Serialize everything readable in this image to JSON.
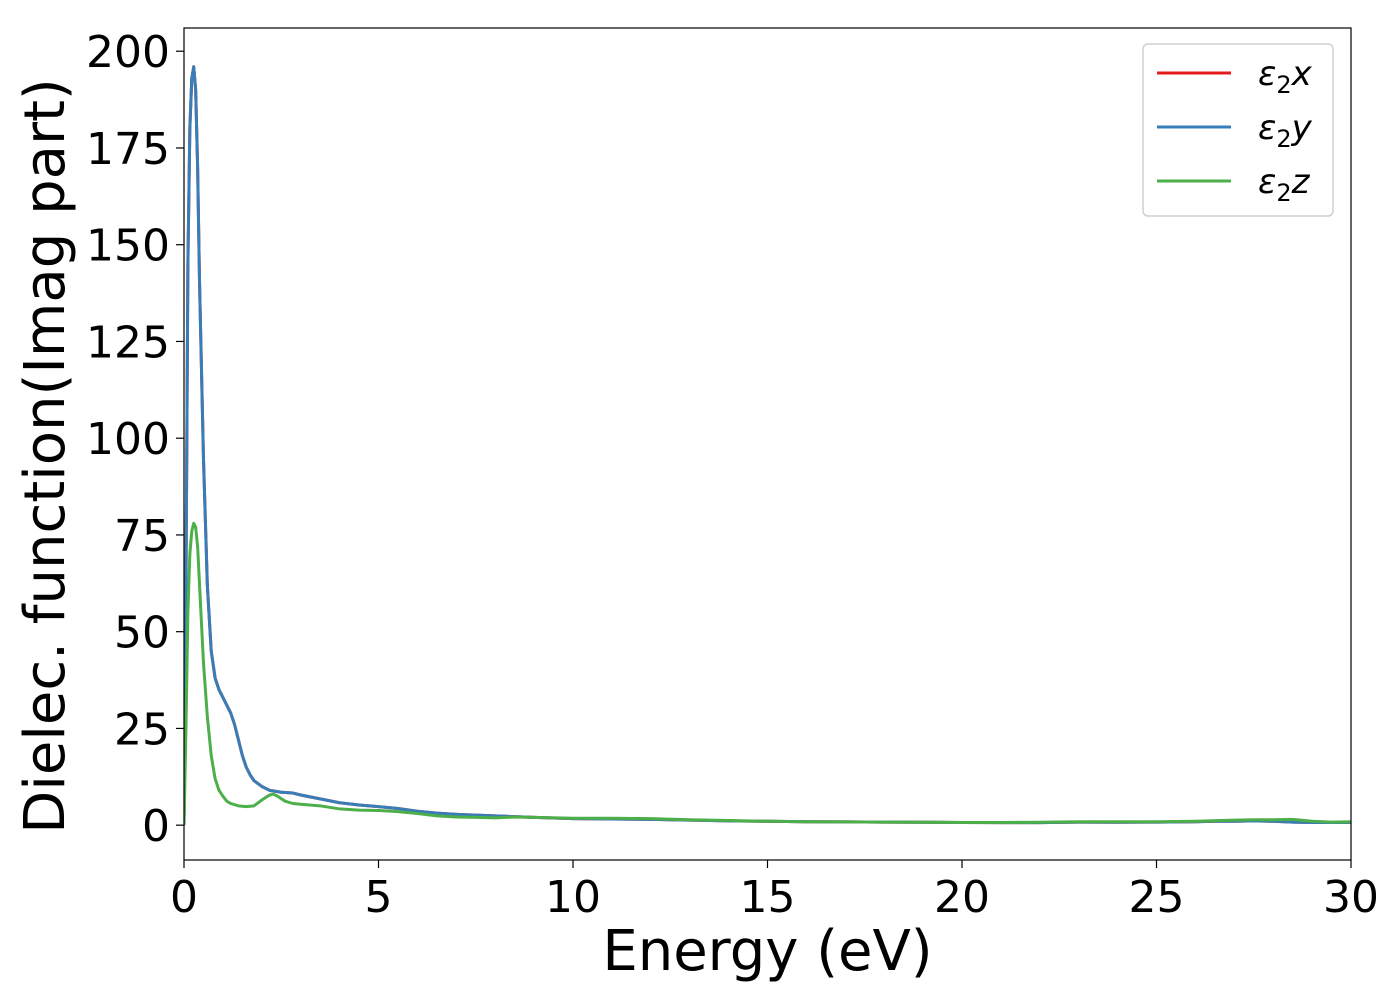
{
  "chart_data": {
    "type": "line",
    "title": "",
    "xlabel": "Energy (eV)",
    "ylabel": "Dielec. function(Imag part)",
    "xlim": [
      0,
      30
    ],
    "ylim": [
      -9,
      206
    ],
    "xticks": [
      0,
      5,
      10,
      15,
      20,
      25,
      30
    ],
    "yticks": [
      0,
      25,
      50,
      75,
      100,
      125,
      150,
      175,
      200
    ],
    "grid": false,
    "legend_position": "top-right",
    "series": [
      {
        "name": "ε₂x",
        "legend_base": "ε",
        "legend_sub": "2",
        "legend_var": "x",
        "color": "#e41a1c",
        "x": [
          0,
          0.05,
          0.1,
          0.15,
          0.2,
          0.25,
          0.3,
          0.35,
          0.4,
          0.5,
          0.6,
          0.7,
          0.8,
          0.9,
          1.0,
          1.1,
          1.2,
          1.3,
          1.4,
          1.5,
          1.6,
          1.7,
          1.8,
          2.0,
          2.2,
          2.5,
          2.8,
          3.0,
          3.5,
          4.0,
          4.5,
          5.0,
          5.5,
          6.0,
          6.5,
          7.0,
          8.0,
          9.0,
          10.0,
          11.0,
          12.0,
          13.0,
          14.0,
          15.0,
          16.0,
          17.0,
          18.0,
          19.0,
          20.0,
          21.0,
          22.0,
          23.0,
          24.0,
          25.0,
          26.0,
          26.5,
          27.0,
          27.5,
          28.0,
          28.5,
          29.0,
          29.5,
          30.0
        ],
        "y": [
          0,
          60,
          145,
          180,
          193,
          196,
          190,
          170,
          140,
          95,
          62,
          45,
          38,
          35,
          33,
          31,
          29,
          26,
          22,
          18,
          15,
          13,
          11.5,
          10,
          9,
          8.5,
          8.3,
          7.8,
          6.8,
          5.8,
          5.2,
          4.8,
          4.3,
          3.6,
          3.1,
          2.8,
          2.4,
          2.0,
          1.7,
          1.6,
          1.5,
          1.3,
          1.1,
          1.0,
          0.9,
          0.85,
          0.8,
          0.75,
          0.7,
          0.65,
          0.65,
          0.8,
          0.75,
          0.8,
          0.9,
          1.0,
          1.0,
          1.1,
          1.0,
          0.8,
          0.7,
          0.7,
          0.7
        ]
      },
      {
        "name": "ε₂y",
        "legend_base": "ε",
        "legend_sub": "2",
        "legend_var": "y",
        "color": "#377eb8",
        "x": [
          0,
          0.05,
          0.1,
          0.15,
          0.2,
          0.25,
          0.3,
          0.35,
          0.4,
          0.5,
          0.6,
          0.7,
          0.8,
          0.9,
          1.0,
          1.1,
          1.2,
          1.3,
          1.4,
          1.5,
          1.6,
          1.7,
          1.8,
          2.0,
          2.2,
          2.5,
          2.8,
          3.0,
          3.5,
          4.0,
          4.5,
          5.0,
          5.5,
          6.0,
          6.5,
          7.0,
          8.0,
          9.0,
          10.0,
          11.0,
          12.0,
          13.0,
          14.0,
          15.0,
          16.0,
          17.0,
          18.0,
          19.0,
          20.0,
          21.0,
          22.0,
          23.0,
          24.0,
          25.0,
          26.0,
          26.5,
          27.0,
          27.5,
          28.0,
          28.5,
          29.0,
          29.5,
          30.0
        ],
        "y": [
          0,
          60,
          145,
          180,
          193,
          196,
          190,
          170,
          140,
          95,
          62,
          45,
          38,
          35,
          33,
          31,
          29,
          26,
          22,
          18,
          15,
          13,
          11.5,
          10,
          9,
          8.5,
          8.3,
          7.8,
          6.8,
          5.8,
          5.2,
          4.8,
          4.3,
          3.6,
          3.1,
          2.8,
          2.4,
          2.0,
          1.7,
          1.6,
          1.5,
          1.3,
          1.1,
          1.0,
          0.9,
          0.85,
          0.8,
          0.75,
          0.7,
          0.65,
          0.65,
          0.8,
          0.75,
          0.8,
          0.9,
          1.0,
          1.0,
          1.1,
          1.0,
          0.8,
          0.7,
          0.7,
          0.7
        ]
      },
      {
        "name": "ε₂z",
        "legend_base": "ε",
        "legend_sub": "2",
        "legend_var": "z",
        "color": "#4daf4a",
        "x": [
          0,
          0.05,
          0.1,
          0.15,
          0.2,
          0.25,
          0.3,
          0.35,
          0.4,
          0.5,
          0.6,
          0.7,
          0.8,
          0.9,
          1.0,
          1.1,
          1.2,
          1.4,
          1.6,
          1.8,
          2.0,
          2.2,
          2.3,
          2.4,
          2.6,
          2.8,
          3.0,
          3.5,
          4.0,
          4.5,
          5.0,
          5.5,
          6.0,
          6.5,
          7.0,
          7.5,
          8.0,
          8.5,
          9.0,
          10.0,
          11.0,
          12.0,
          13.0,
          14.0,
          15.0,
          16.0,
          17.0,
          18.0,
          19.0,
          20.0,
          21.0,
          22.0,
          23.0,
          24.0,
          25.0,
          26.0,
          27.0,
          27.5,
          28.0,
          28.5,
          29.0,
          29.5,
          30.0
        ],
        "y": [
          0,
          25,
          55,
          70,
          76,
          78,
          77,
          72,
          62,
          42,
          28,
          18,
          12,
          9,
          7.5,
          6.2,
          5.6,
          5.0,
          4.8,
          5.0,
          6.5,
          7.8,
          8.0,
          7.5,
          6.2,
          5.6,
          5.4,
          5.0,
          4.2,
          3.9,
          3.8,
          3.5,
          3.0,
          2.4,
          2.1,
          2.0,
          1.9,
          2.1,
          2.0,
          1.8,
          1.8,
          1.7,
          1.4,
          1.2,
          1.0,
          0.9,
          0.85,
          0.8,
          0.75,
          0.7,
          0.7,
          0.75,
          0.9,
          0.9,
          0.9,
          1.0,
          1.3,
          1.4,
          1.4,
          1.5,
          1.0,
          0.8,
          0.9
        ]
      }
    ]
  }
}
